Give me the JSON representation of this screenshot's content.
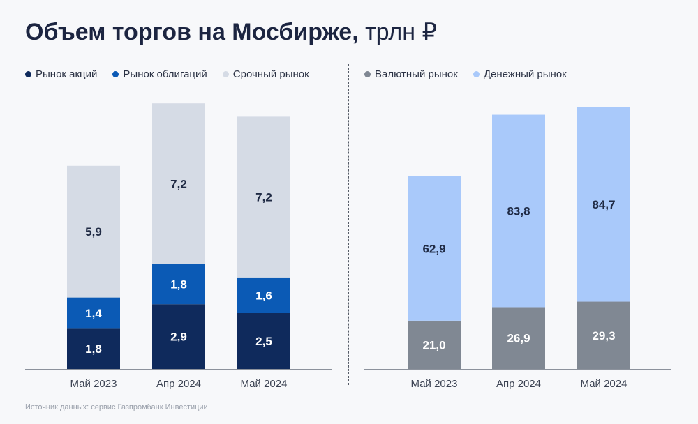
{
  "title": {
    "main": "Объем торгов на Мосбирже,",
    "unit": " трлн ₽"
  },
  "legend_left": [
    {
      "label": "Рынок акций",
      "color": "#0f2a5c"
    },
    {
      "label": "Рынок облигаций",
      "color": "#0b5ab5"
    },
    {
      "label": "Срочный рынок",
      "color": "#d5dbe5"
    }
  ],
  "legend_right": [
    {
      "label": "Валютный рынок",
      "color": "#808893"
    },
    {
      "label": "Денежный рынок",
      "color": "#a9c9fa"
    }
  ],
  "source": "Источник данных: сервис Газпромбанк Инвестиции",
  "chart_data": [
    {
      "type": "bar",
      "stacked": true,
      "categories": [
        "Май 2023",
        "Апр 2024",
        "Май 2024"
      ],
      "series": [
        {
          "name": "Рынок акций",
          "values": [
            1.8,
            2.9,
            2.5
          ],
          "labels": [
            "1,8",
            "2,9",
            "2,5"
          ],
          "color": "#0f2a5c",
          "label_color": "#ffffff"
        },
        {
          "name": "Рынок облигаций",
          "values": [
            1.4,
            1.8,
            1.6
          ],
          "labels": [
            "1,4",
            "1,8",
            "1,6"
          ],
          "color": "#0b5ab5",
          "label_color": "#ffffff"
        },
        {
          "name": "Срочный рынок",
          "values": [
            5.9,
            7.2,
            7.2
          ],
          "labels": [
            "5,9",
            "7,2",
            "7,2"
          ],
          "color": "#d5dbe5",
          "label_color": "#1f2a44"
        }
      ],
      "ylim": [
        0,
        12.5
      ],
      "grid": false,
      "legend_position": "top-left"
    },
    {
      "type": "bar",
      "stacked": true,
      "categories": [
        "Май 2023",
        "Апр 2024",
        "Май 2024"
      ],
      "series": [
        {
          "name": "Валютный рынок",
          "values": [
            21.0,
            26.9,
            29.3
          ],
          "labels": [
            "21,0",
            "26,9",
            "29,3"
          ],
          "color": "#808893",
          "label_color": "#ffffff"
        },
        {
          "name": "Денежный рынок",
          "values": [
            62.9,
            83.8,
            84.7
          ],
          "labels": [
            "62,9",
            "83,8",
            "84,7"
          ],
          "color": "#a9c9fa",
          "label_color": "#1f2a44"
        }
      ],
      "ylim": [
        0,
        121.5
      ],
      "grid": false,
      "legend_position": "top-right"
    }
  ]
}
